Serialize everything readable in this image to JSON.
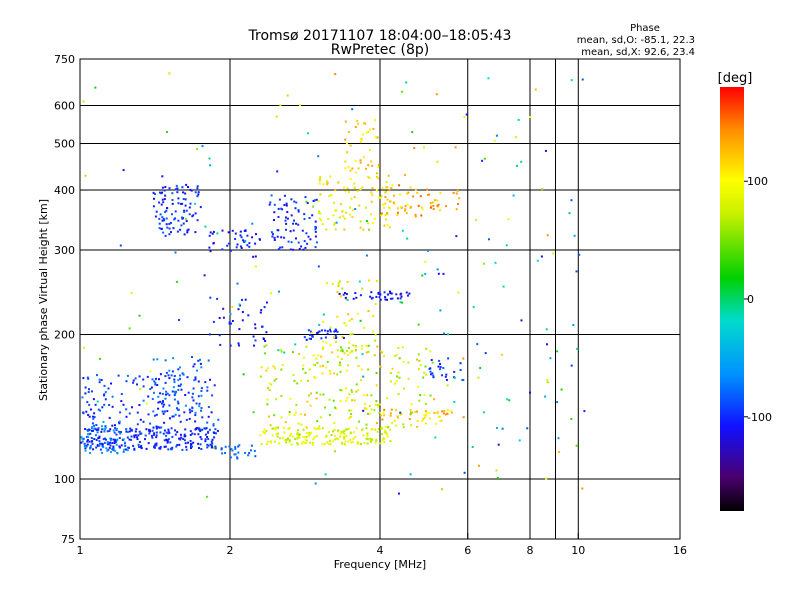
{
  "chart_data": {
    "type": "scatter",
    "title": "Tromsø 20171107 18:04:00–18:05:43",
    "subtitle": "RwPretec (8p)",
    "phase_box": {
      "heading": "Phase",
      "line_o": "mean, sd,O: -85.1, 22.3",
      "line_x": "mean, sd,X:  92.6, 23.4"
    },
    "xlabel": "Frequency [MHz]",
    "ylabel": "Stationary phase Virtual Height [km]",
    "x_scale": "log2",
    "y_scale": "log",
    "xlim": [
      1,
      16
    ],
    "ylim": [
      75,
      750
    ],
    "x_ticks": [
      {
        "v": 1,
        "label": "1"
      },
      {
        "v": 2,
        "label": "2"
      },
      {
        "v": 4,
        "label": "4"
      },
      {
        "v": 6,
        "label": "6"
      },
      {
        "v": 8,
        "label": "8"
      },
      {
        "v": 9,
        "label": ""
      },
      {
        "v": 10,
        "label": "10"
      },
      {
        "v": 16,
        "label": "16"
      }
    ],
    "y_ticks": [
      {
        "v": 75,
        "label": "75"
      },
      {
        "v": 100,
        "label": "100"
      },
      {
        "v": 200,
        "label": "200"
      },
      {
        "v": 300,
        "label": "300"
      },
      {
        "v": 400,
        "label": "400"
      },
      {
        "v": 500,
        "label": "500"
      },
      {
        "v": 600,
        "label": "600"
      },
      {
        "v": 750,
        "label": "750"
      }
    ],
    "x_grid": [
      2,
      4,
      6,
      8,
      9,
      10
    ],
    "y_grid": [
      100,
      200,
      300,
      400,
      500,
      600
    ],
    "grid": true,
    "colorbar": {
      "unit": "[deg]",
      "range": [
        -180,
        180
      ],
      "ticks": [
        {
          "v": 100,
          "label": "100"
        },
        {
          "v": 0,
          "label": "0"
        },
        {
          "v": -100,
          "label": "-100"
        }
      ]
    },
    "clusters": [
      {
        "f": [
          1.0,
          1.9
        ],
        "h": [
          115,
          128
        ],
        "phase": [
          -115,
          -85
        ],
        "n": 260
      },
      {
        "f": [
          1.0,
          1.9
        ],
        "h": [
          128,
          165
        ],
        "phase": [
          -120,
          -70
        ],
        "n": 150
      },
      {
        "f": [
          1.0,
          1.25
        ],
        "h": [
          112,
          132
        ],
        "phase": [
          -75,
          -45
        ],
        "n": 50
      },
      {
        "f": [
          1.4,
          1.8
        ],
        "h": [
          135,
          180
        ],
        "phase": [
          -110,
          -60
        ],
        "n": 70
      },
      {
        "f": [
          1.4,
          1.75
        ],
        "h": [
          320,
          410
        ],
        "phase": [
          -115,
          -80
        ],
        "n": 100
      },
      {
        "f": [
          1.8,
          2.4
        ],
        "h": [
          185,
          240
        ],
        "phase": [
          -130,
          -90
        ],
        "n": 40
      },
      {
        "f": [
          1.8,
          2.3
        ],
        "h": [
          290,
          330
        ],
        "phase": [
          -125,
          -90
        ],
        "n": 40
      },
      {
        "f": [
          1.9,
          2.25
        ],
        "h": [
          110,
          118
        ],
        "phase": [
          -90,
          -70
        ],
        "n": 25
      },
      {
        "f": [
          2.3,
          4.2
        ],
        "h": [
          118,
          128
        ],
        "phase": [
          60,
          110
        ],
        "n": 180
      },
      {
        "f": [
          2.3,
          5.2
        ],
        "h": [
          128,
          190
        ],
        "phase": [
          40,
          130
        ],
        "n": 220
      },
      {
        "f": [
          2.4,
          3.0
        ],
        "h": [
          300,
          390
        ],
        "phase": [
          -120,
          -80
        ],
        "n": 80
      },
      {
        "f": [
          2.8,
          3.3
        ],
        "h": [
          195,
          205
        ],
        "phase": [
          -120,
          -80
        ],
        "n": 30
      },
      {
        "f": [
          3.0,
          4.2
        ],
        "h": [
          330,
          430
        ],
        "phase": [
          70,
          130
        ],
        "n": 90
      },
      {
        "f": [
          3.4,
          4.0
        ],
        "h": [
          430,
          560
        ],
        "phase": [
          80,
          140
        ],
        "n": 40
      },
      {
        "f": [
          3.0,
          4.0
        ],
        "h": [
          180,
          260
        ],
        "phase": [
          60,
          130
        ],
        "n": 50
      },
      {
        "f": [
          3.3,
          4.6
        ],
        "h": [
          236,
          246
        ],
        "phase": [
          -130,
          -90
        ],
        "n": 40
      },
      {
        "f": [
          4.0,
          5.2
        ],
        "h": [
          350,
          410
        ],
        "phase": [
          100,
          160
        ],
        "n": 50
      },
      {
        "f": [
          4.0,
          5.6
        ],
        "h": [
          132,
          140
        ],
        "phase": [
          100,
          150
        ],
        "n": 40
      },
      {
        "f": [
          5.0,
          5.9
        ],
        "h": [
          160,
          180
        ],
        "phase": [
          -110,
          -70
        ],
        "n": 25
      },
      {
        "f": [
          5.0,
          5.9
        ],
        "h": [
          360,
          400
        ],
        "phase": [
          110,
          160
        ],
        "n": 20
      },
      {
        "f": [
          4.3,
          10.5
        ],
        "h": [
          90,
          700
        ],
        "phase": [
          -130,
          150
        ],
        "n": 110
      },
      {
        "f": [
          1.0,
          4.0
        ],
        "h": [
          90,
          700
        ],
        "phase": [
          -130,
          150
        ],
        "n": 80
      }
    ]
  }
}
